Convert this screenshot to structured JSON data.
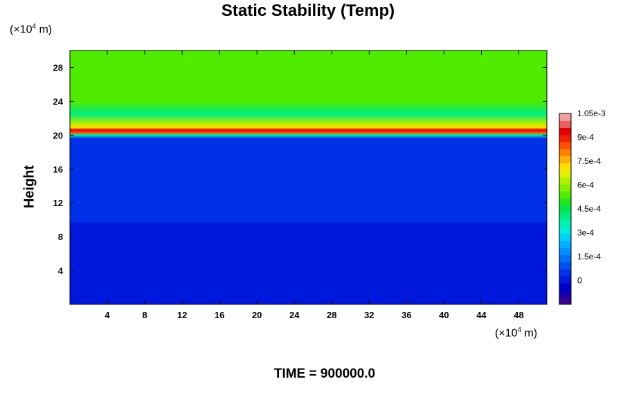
{
  "chart_data": {
    "type": "heatmap",
    "title": "Static Stability (Temp)",
    "ylabel": "Height",
    "xlabel": "",
    "y_unit": {
      "prefix": "(×10",
      "exp": "4",
      "suffix": " m)"
    },
    "x_unit": {
      "prefix": "(×10",
      "exp": "4",
      "suffix": " m)"
    },
    "xlim": [
      0,
      51
    ],
    "ylim": [
      0,
      30
    ],
    "x_ticks": [
      4,
      8,
      12,
      16,
      20,
      24,
      28,
      32,
      36,
      40,
      44,
      48
    ],
    "y_ticks": [
      4,
      8,
      12,
      16,
      20,
      24,
      28
    ],
    "colorbar": {
      "range": [
        -0.00015,
        0.00105
      ],
      "labels": [
        "1.05e-3",
        "9e-4",
        "7.5e-4",
        "6e-4",
        "4.5e-4",
        "3e-4",
        "1.5e-4",
        "0"
      ],
      "label_values": [
        0.00105,
        0.0009,
        0.00075,
        0.0006,
        0.00045,
        0.0003,
        0.00015,
        0
      ],
      "colors": [
        "#3c0096",
        "#1200b4",
        "#0000cc",
        "#0018dc",
        "#0030e8",
        "#0050f0",
        "#0070f8",
        "#0090ff",
        "#00b0ff",
        "#00d0f8",
        "#00ecdc",
        "#00f0b0",
        "#00ec80",
        "#00e850",
        "#20e820",
        "#50ec00",
        "#80f000",
        "#b0f000",
        "#e0f000",
        "#ffe000",
        "#ffb000",
        "#ff8000",
        "#ff5000",
        "#f02000",
        "#e00000",
        "#e86060",
        "#f0a0a0"
      ]
    },
    "profile": [
      {
        "y": 0,
        "value": 2e-05
      },
      {
        "y": 9.6,
        "value": 2e-05
      },
      {
        "y": 9.8,
        "value": 4e-05
      },
      {
        "y": 19.6,
        "value": 4e-05
      },
      {
        "y": 20.0,
        "value": 0.00038
      },
      {
        "y": 20.3,
        "value": 0.00085
      },
      {
        "y": 20.6,
        "value": 0.00092
      },
      {
        "y": 20.9,
        "value": 0.0007
      },
      {
        "y": 21.4,
        "value": 0.00062
      },
      {
        "y": 22.5,
        "value": 0.00042
      },
      {
        "y": 24.0,
        "value": 0.00052
      },
      {
        "y": 26.0,
        "value": 0.00055
      },
      {
        "y": 30.0,
        "value": 0.00055
      }
    ]
  },
  "footer": {
    "time_label": "TIME = 900000.0"
  }
}
